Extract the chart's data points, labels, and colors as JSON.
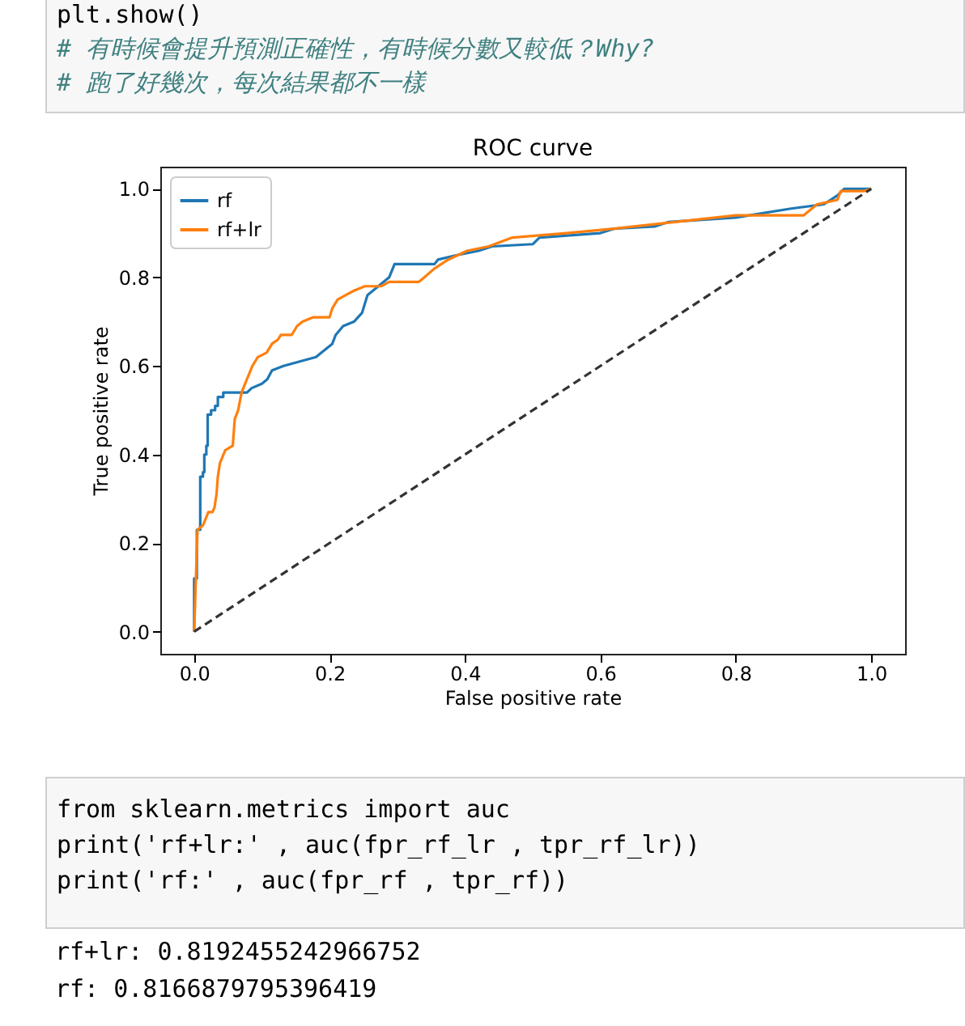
{
  "chart_data": {
    "type": "line",
    "title": "ROC curve",
    "xlabel": "False positive rate",
    "ylabel": "True positive rate",
    "xlim": [
      -0.05,
      1.05
    ],
    "ylim": [
      -0.05,
      1.05
    ],
    "xticks": [
      {
        "value": 0,
        "label": "0.0"
      },
      0.2,
      0.4,
      0.6,
      0.8,
      {
        "value": 1,
        "label": "1.0"
      }
    ],
    "yticks": [
      {
        "value": 0,
        "label": "0.0"
      },
      0.2,
      0.4,
      0.6,
      0.8,
      {
        "value": 1,
        "label": "1.0"
      }
    ],
    "grid": false,
    "legend": "top left",
    "marker": "none",
    "series": [
      {
        "name": "rf",
        "color": "#1f77b4",
        "x": [
          0,
          0,
          0.004,
          0.004,
          0.009,
          0.009,
          0.013,
          0.013,
          0.015,
          0.015,
          0.018,
          0.018,
          0.02,
          0.02,
          0.025,
          0.025,
          0.031,
          0.031,
          0.035,
          0.035,
          0.043,
          0.043,
          0.078,
          0.085,
          0.1,
          0.108,
          0.115,
          0.132,
          0.156,
          0.18,
          0.188,
          0.204,
          0.209,
          0.22,
          0.236,
          0.248,
          0.256,
          0.272,
          0.288,
          0.296,
          0.355,
          0.36,
          0.387,
          0.42,
          0.44,
          0.5,
          0.51,
          0.6,
          0.62,
          0.68,
          0.7,
          0.8,
          0.82,
          0.88,
          0.93,
          0.95,
          0.96,
          1
        ],
        "values": [
          0,
          0.12,
          0.12,
          0.23,
          0.23,
          0.35,
          0.35,
          0.36,
          0.36,
          0.4,
          0.4,
          0.42,
          0.42,
          0.49,
          0.49,
          0.5,
          0.5,
          0.51,
          0.51,
          0.53,
          0.53,
          0.54,
          0.54,
          0.55,
          0.56,
          0.57,
          0.59,
          0.6,
          0.61,
          0.62,
          0.63,
          0.65,
          0.67,
          0.69,
          0.7,
          0.72,
          0.76,
          0.78,
          0.8,
          0.83,
          0.83,
          0.84,
          0.85,
          0.86,
          0.87,
          0.875,
          0.89,
          0.9,
          0.91,
          0.915,
          0.925,
          0.935,
          0.94,
          0.955,
          0.965,
          0.985,
          1,
          1
        ]
      },
      {
        "name": "rf+lr",
        "color": "#ff7f0e",
        "x": [
          0,
          0.005,
          0.013,
          0.021,
          0.027,
          0.03,
          0.033,
          0.035,
          0.038,
          0.046,
          0.057,
          0.06,
          0.065,
          0.07,
          0.078,
          0.086,
          0.094,
          0.107,
          0.115,
          0.124,
          0.128,
          0.144,
          0.152,
          0.16,
          0.176,
          0.2,
          0.204,
          0.212,
          0.224,
          0.236,
          0.252,
          0.276,
          0.288,
          0.332,
          0.34,
          0.355,
          0.375,
          0.403,
          0.435,
          0.47,
          0.55,
          0.62,
          0.68,
          0.74,
          0.8,
          0.9,
          0.92,
          0.95,
          0.955,
          0.99,
          1
        ],
        "values": [
          0,
          0.23,
          0.24,
          0.27,
          0.27,
          0.28,
          0.31,
          0.35,
          0.38,
          0.41,
          0.42,
          0.48,
          0.5,
          0.54,
          0.57,
          0.6,
          0.62,
          0.63,
          0.65,
          0.66,
          0.67,
          0.67,
          0.69,
          0.7,
          0.71,
          0.71,
          0.73,
          0.75,
          0.76,
          0.77,
          0.78,
          0.78,
          0.79,
          0.79,
          0.8,
          0.82,
          0.84,
          0.86,
          0.87,
          0.89,
          0.9,
          0.91,
          0.92,
          0.93,
          0.94,
          0.94,
          0.965,
          0.975,
          0.995,
          0.995,
          1
        ]
      },
      {
        "color": "#333333",
        "line_style": "dashed",
        "x": [
          0,
          1
        ],
        "values": [
          0,
          1
        ]
      }
    ],
    "annotations": [
      "plt.show()",
      "# 有時候會提升預測正確性，有時候分數又較低？Why?",
      "# 跑了好幾次，每次結果都不一樣",
      "from sklearn.metrics import auc",
      "print('rf+lr:' , auc(fpr_rf_lr , tpr_rf_lr))",
      "print('rf:' , auc(fpr_rf , tpr_rf))",
      "rf+lr: 0.8192455242966752",
      "rf: 0.8166879795396419"
    ]
  }
}
